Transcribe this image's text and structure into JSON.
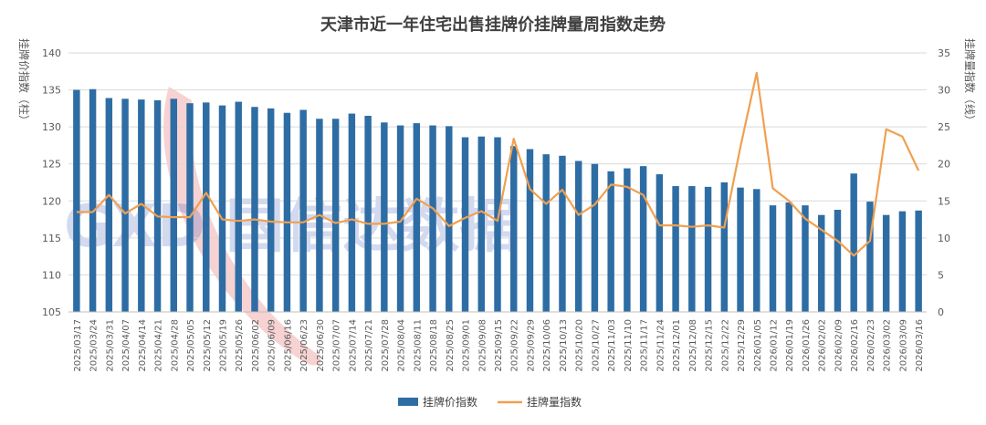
{
  "chart_data": {
    "type": "bar+line",
    "title": "天津市近一年住宅出售挂牌价挂牌量周指数走势",
    "ylabel_left": "挂牌价指数（柱）",
    "ylabel_right": "挂牌量指数（线）",
    "ylim_left": [
      105,
      140
    ],
    "ylim_right": [
      0,
      35
    ],
    "left_ticks": [
      105,
      110,
      115,
      120,
      125,
      130,
      135,
      140
    ],
    "right_ticks": [
      0,
      5,
      10,
      15,
      20,
      25,
      30,
      35
    ],
    "legend_placement": "bottom",
    "grid": true,
    "watermark": "GXD 国信达数据",
    "categories": [
      "2025/03/17",
      "2025/03/24",
      "2025/03/31",
      "2025/04/07",
      "2025/04/14",
      "2025/04/21",
      "2025/04/28",
      "2025/05/05",
      "2025/05/12",
      "2025/05/19",
      "2025/05/26",
      "2025/06/02",
      "2025/06/09",
      "2025/06/16",
      "2025/06/23",
      "2025/06/30",
      "2025/07/07",
      "2025/07/14",
      "2025/07/21",
      "2025/07/28",
      "2025/08/04",
      "2025/08/11",
      "2025/08/18",
      "2025/08/25",
      "2025/09/01",
      "2025/09/08",
      "2025/09/15",
      "2025/09/22",
      "2025/09/29",
      "2025/10/06",
      "2025/10/13",
      "2025/10/20",
      "2025/10/27",
      "2025/11/03",
      "2025/11/10",
      "2025/11/17",
      "2025/11/24",
      "2025/12/01",
      "2025/12/08",
      "2025/12/15",
      "2025/12/22",
      "2025/12/29",
      "2026/01/05",
      "2026/01/12",
      "2026/01/19",
      "2026/01/26",
      "2026/02/02",
      "2026/02/09",
      "2026/02/16",
      "2026/02/23",
      "2026/03/02",
      "2026/03/09",
      "2026/03/16"
    ],
    "series": [
      {
        "name": "挂牌价指数",
        "type": "bar",
        "axis": "left",
        "color": "#2e6da4",
        "values": [
          135.0,
          135.1,
          133.9,
          133.8,
          133.7,
          133.6,
          133.8,
          133.2,
          133.3,
          132.9,
          133.4,
          132.7,
          132.5,
          131.9,
          132.3,
          131.1,
          131.1,
          131.8,
          131.5,
          130.6,
          130.2,
          130.5,
          130.2,
          130.1,
          128.6,
          128.7,
          128.6,
          127.4,
          127.0,
          126.3,
          126.1,
          125.4,
          125.0,
          124.0,
          124.4,
          124.7,
          123.6,
          122.0,
          122.0,
          121.9,
          122.5,
          121.8,
          121.6,
          119.4,
          119.8,
          119.4,
          118.1,
          118.8,
          123.7,
          119.9,
          118.1,
          118.6,
          118.7
        ]
      },
      {
        "name": "挂牌量指数",
        "type": "line",
        "axis": "right",
        "color": "#f0a050",
        "values": [
          13.5,
          13.5,
          15.8,
          13.3,
          14.6,
          12.9,
          12.8,
          12.8,
          16.1,
          12.5,
          12.3,
          12.5,
          12.2,
          12.1,
          12.1,
          13.1,
          12.0,
          12.5,
          11.9,
          11.9,
          12.2,
          15.3,
          14.0,
          11.6,
          12.7,
          13.6,
          12.3,
          23.4,
          16.6,
          14.6,
          16.5,
          13.1,
          14.5,
          17.2,
          16.9,
          15.8,
          11.7,
          11.7,
          11.5,
          11.7,
          11.4,
          22.3,
          32.3,
          16.7,
          15.0,
          12.6,
          11.1,
          9.6,
          7.6,
          9.6,
          24.7,
          23.7,
          19.1
        ]
      }
    ]
  }
}
